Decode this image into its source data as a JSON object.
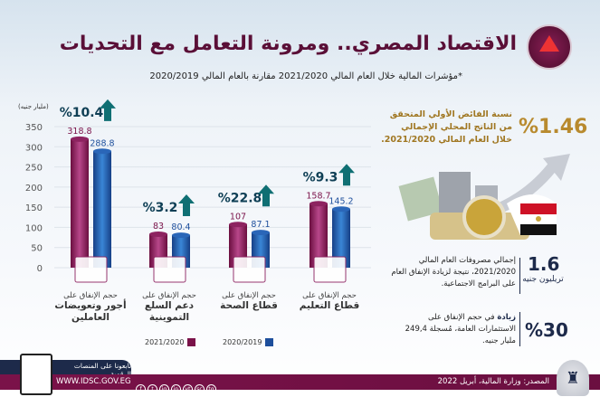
{
  "header": {
    "title": "الاقتصاد المصري.. ومرونة التعامل مع التحديات",
    "subtitle": "*مؤشرات المالية خلال العام المالي 2021/2020 مقارنة بالعام المالي 2020/2019"
  },
  "colors": {
    "maroon": "#7a1249",
    "blue": "#1e4f9c",
    "teal": "#0f6f73",
    "gold": "#b88a2e"
  },
  "chart_data": {
    "type": "bar",
    "unit_label": "(مليار جنيه)",
    "ylim": [
      0,
      350
    ],
    "yticks": [
      0,
      50,
      100,
      150,
      200,
      250,
      300,
      350
    ],
    "categories": [
      {
        "small": "حجم الإنفاق على",
        "bold": "أجور وتعويضات العاملين",
        "icon": "money-envelope-icon",
        "growth": "%10.4"
      },
      {
        "small": "حجم الإنفاق على",
        "bold": "دعم السلع التموينية",
        "icon": "grocery-box-icon",
        "growth": "%3.2"
      },
      {
        "small": "حجم الإنفاق على",
        "bold": "قطاع الصحة",
        "icon": "stethoscope-icon",
        "growth": "%22.8"
      },
      {
        "small": "حجم الإنفاق على",
        "bold": "قطاع التعليم",
        "icon": "book-icon",
        "growth": "%9.3"
      }
    ],
    "series": [
      {
        "name": "2021/2020",
        "color": "#7a1249",
        "values": [
          318.8,
          83,
          107,
          158.7
        ],
        "labels": [
          "318.8",
          "83",
          "107",
          "158.7"
        ]
      },
      {
        "name": "2020/2019",
        "color": "#1e4f9c",
        "values": [
          288.8,
          80.4,
          87.1,
          145.2
        ],
        "labels": [
          "288.8",
          "80.4",
          "87.1",
          "145.2"
        ]
      }
    ],
    "legend": "bottom"
  },
  "right": {
    "surplus_value": "%1.46",
    "surplus_text": "نسبة الفائض الأولي المتحقق من الناتج المحلي الإجمالي خلال العام المالي 2021/2020.",
    "spend_value": "1.6",
    "spend_unit": "تريليون جنيه",
    "spend_text": "إجمالي مصروفات العام المالي 2021/2020، نتيجة لزيادة الإنفاق العام على البرامج الاجتماعية.",
    "invest_value": "%30",
    "invest_bold": "زيادة",
    "invest_text": " في حجم الإنفاق على الاستثمارات العامة، مُسجلة 249,4 مليار جنيه."
  },
  "footer": {
    "follow": "تابعونا على المنصات الرقمية",
    "url": "WWW.IDSC.GOV.EG",
    "source": "المصدر: وزارة المالية، أبريل 2022",
    "social": [
      "f",
      "t",
      "ig",
      "in",
      "yt",
      "sc",
      "tg"
    ]
  }
}
